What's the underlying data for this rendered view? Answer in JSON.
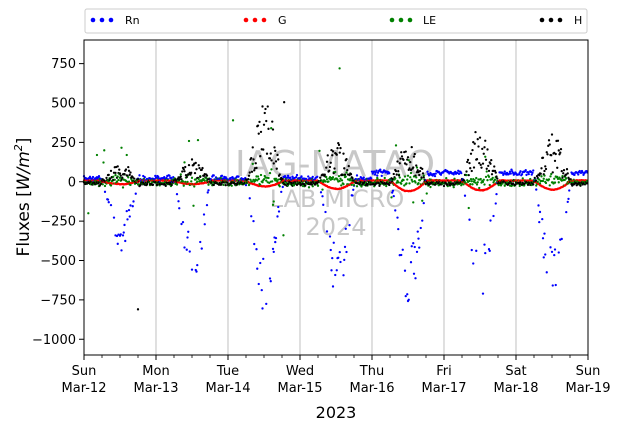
{
  "chart_data": {
    "type": "scatter",
    "xlabel": "2023",
    "ylabel_main": "Fluxes [",
    "ylabel_unit": "W/m",
    "ylabel_exp": "2",
    "ylabel_close": "]",
    "xlim": [
      0,
      7
    ],
    "ylim": [
      -1100,
      900
    ],
    "yticks": [
      -1000,
      -750,
      -500,
      -250,
      0,
      250,
      500,
      750
    ],
    "xticks": [
      {
        "day": 0,
        "l1": "Sun",
        "l2": "Mar-12"
      },
      {
        "day": 1,
        "l1": "Mon",
        "l2": "Mar-13"
      },
      {
        "day": 2,
        "l1": "Tue",
        "l2": "Mar-14"
      },
      {
        "day": 3,
        "l1": "Wed",
        "l2": "Mar-15"
      },
      {
        "day": 4,
        "l1": "Thu",
        "l2": "Mar-16"
      },
      {
        "day": 5,
        "l1": "Fri",
        "l2": "Mar-17"
      },
      {
        "day": 6,
        "l1": "Sat",
        "l2": "Mar-18"
      },
      {
        "day": 7,
        "l1": "Sun",
        "l2": "Mar-19"
      }
    ],
    "grid": "vertical",
    "legend_position": "top",
    "watermark": [
      "IAG-MATAO",
      "LAB MICRO",
      "2024"
    ],
    "series": [
      {
        "name": "Rn",
        "color": "#0000ff"
      },
      {
        "name": "G",
        "color": "#ff0000"
      },
      {
        "name": "LE",
        "color": "#008000"
      },
      {
        "name": "H",
        "color": "#000000"
      }
    ],
    "daily_min_Rn": [
      -420,
      -590,
      -810,
      -700,
      -730,
      -720,
      -730
    ],
    "daily_max_H": [
      100,
      130,
      510,
      250,
      270,
      360,
      300
    ],
    "daily_min_G": [
      -15,
      -15,
      -30,
      -45,
      -60,
      -55,
      -50
    ]
  }
}
